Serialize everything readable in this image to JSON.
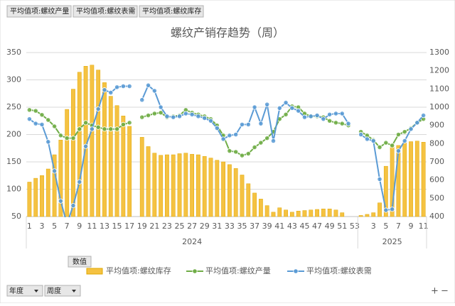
{
  "chart_data": {
    "type": "combo",
    "title": "螺纹产销存趋势（周）",
    "field_buttons": [
      "平均值项:螺纹产量",
      "平均值项:螺纹表需",
      "平均值项:螺纹库存"
    ],
    "value_button": "数值",
    "axis_buttons": [
      "年度",
      "周度"
    ],
    "groups": [
      {
        "label": "2024",
        "count": 53
      },
      {
        "label": "2025",
        "count": 11
      }
    ],
    "categories": [
      "1",
      null,
      "3",
      null,
      "5",
      null,
      "7",
      null,
      "9",
      null,
      "11",
      null,
      "13",
      null,
      "15",
      null,
      "17",
      null,
      "19",
      null,
      "21",
      null,
      "23",
      null,
      "25",
      null,
      "27",
      null,
      "29",
      null,
      "31",
      null,
      "33",
      null,
      "35",
      null,
      "37",
      null,
      "39",
      null,
      "41",
      null,
      "43",
      null,
      "45",
      null,
      "47",
      null,
      "49",
      null,
      "51",
      null,
      "53",
      null,
      null,
      "3",
      null,
      "5",
      null,
      "7",
      null,
      "9",
      null,
      "11"
    ],
    "ylim": [
      50,
      350
    ],
    "yticks": [
      50,
      100,
      150,
      200,
      250,
      300,
      350
    ],
    "y2lim": [
      400,
      1300
    ],
    "y2ticks": [
      400,
      500,
      600,
      700,
      800,
      900,
      1000,
      1100,
      1200,
      1300
    ],
    "grid": true,
    "legend": "bottom",
    "series": [
      {
        "name": "平均值项:螺纹库存",
        "type": "bar",
        "color": "#f5c242",
        "values": [
          113,
          120,
          125,
          137,
          163,
          190,
          246,
          283,
          314,
          325,
          327,
          318,
          295,
          270,
          253,
          234,
          215,
          null,
          195,
          178,
          166,
          162,
          163,
          163,
          165,
          166,
          164,
          163,
          160,
          157,
          153,
          150,
          145,
          138,
          126,
          110,
          93,
          82,
          70,
          58,
          66,
          62,
          58,
          60,
          61,
          62,
          63,
          64,
          64,
          62,
          57,
          null,
          null,
          52,
          54,
          57,
          75,
          142,
          180,
          180,
          185,
          187,
          188,
          186
        ]
      },
      {
        "name": "平均值项:螺纹产量",
        "type": "line",
        "axis": "y2",
        "color": "#70ad47",
        "values": [
          985,
          980,
          958,
          930,
          895,
          845,
          830,
          830,
          880,
          915,
          900,
          890,
          880,
          880,
          880,
          905,
          915,
          null,
          945,
          955,
          965,
          970,
          945,
          950,
          955,
          985,
          970,
          960,
          950,
          935,
          900,
          845,
          760,
          755,
          735,
          745,
          780,
          805,
          830,
          865,
          935,
          960,
          1005,
          1000,
          965,
          950,
          950,
          945,
          925,
          915,
          910,
          900,
          null,
          865,
          845,
          820,
          780,
          805,
          790,
          850,
          865,
          885,
          915,
          935
        ]
      },
      {
        "name": "平均值项:螺纹表需",
        "type": "line",
        "axis": "y2",
        "color": "#5b9bd5",
        "values": [
          935,
          910,
          905,
          810,
          650,
          485,
          360,
          460,
          590,
          785,
          880,
          990,
          1095,
          1080,
          1110,
          1115,
          1115,
          null,
          1040,
          1120,
          1090,
          1000,
          950,
          945,
          950,
          965,
          960,
          950,
          940,
          925,
          885,
          825,
          845,
          850,
          905,
          905,
          1000,
          910,
          1015,
          815,
          995,
          1025,
          995,
          980,
          945,
          950,
          955,
          935,
          960,
          965,
          965,
          910,
          null,
          850,
          825,
          815,
          605,
          435,
          440,
          760,
          815,
          880,
          915,
          955
        ]
      }
    ]
  }
}
